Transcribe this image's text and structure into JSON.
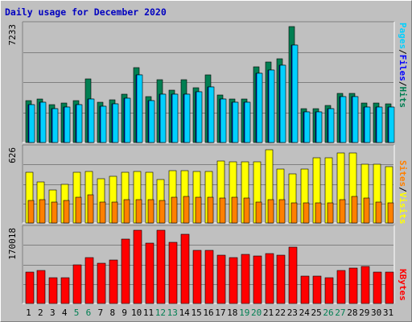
{
  "title": "Daily usage for December 2020",
  "colors": {
    "hits": "#007f52",
    "files": "#0000ff",
    "pages": "#00d0ff",
    "visits": "#ffff00",
    "sites": "#ff8000",
    "kbytes": "#ff0000",
    "weekend_label": "#007f52",
    "weekday_label": "#000000",
    "title": "#0000c0"
  },
  "legend_top": [
    "Pages",
    "/",
    "Files",
    "/",
    "Hits"
  ],
  "legend_mid": [
    "Sites",
    "/",
    "Visits"
  ],
  "legend_bot": [
    "KBytes"
  ],
  "chart_data": [
    {
      "type": "bar",
      "title": "Daily usage for December 2020",
      "categories": [
        "1",
        "2",
        "3",
        "4",
        "5",
        "6",
        "7",
        "8",
        "9",
        "10",
        "11",
        "12",
        "13",
        "14",
        "15",
        "16",
        "17",
        "18",
        "19",
        "20",
        "21",
        "22",
        "23",
        "24",
        "25",
        "26",
        "27",
        "28",
        "29",
        "30",
        "31"
      ],
      "weekend_days": [
        "5",
        "6",
        "12",
        "13",
        "19",
        "20",
        "26",
        "27"
      ],
      "ymax_label": "7233",
      "ylim": [
        0,
        7233
      ],
      "series": [
        {
          "name": "Hits",
          "values": [
            2600,
            2720,
            2340,
            2460,
            2600,
            3950,
            2510,
            2640,
            2990,
            4650,
            2840,
            3900,
            3240,
            3940,
            3410,
            4200,
            2950,
            2720,
            2720,
            4720,
            5030,
            5200,
            7233,
            2130,
            2130,
            2320,
            3080,
            3080,
            2460,
            2460,
            2420
          ]
        },
        {
          "name": "Files",
          "values": [
            2370,
            2490,
            2110,
            2230,
            2370,
            2710,
            2280,
            2410,
            2760,
            4230,
            2610,
            3010,
            3010,
            3010,
            3170,
            3460,
            2720,
            2490,
            2490,
            4340,
            4500,
            4800,
            6100,
            1900,
            1900,
            2090,
            2850,
            2850,
            2230,
            2230,
            2190
          ]
        },
        {
          "name": "Pages",
          "values": [
            2370,
            2490,
            2110,
            2230,
            2370,
            2710,
            2280,
            2410,
            2760,
            4230,
            2610,
            3010,
            3010,
            3010,
            3170,
            3460,
            2720,
            2490,
            2490,
            4340,
            4500,
            4800,
            6100,
            1900,
            1900,
            2090,
            2850,
            2850,
            2230,
            2230,
            2190
          ]
        }
      ]
    },
    {
      "type": "bar",
      "categories": [
        "1",
        "2",
        "3",
        "4",
        "5",
        "6",
        "7",
        "8",
        "9",
        "10",
        "11",
        "12",
        "13",
        "14",
        "15",
        "16",
        "17",
        "18",
        "19",
        "20",
        "21",
        "22",
        "23",
        "24",
        "25",
        "26",
        "27",
        "28",
        "29",
        "30",
        "31"
      ],
      "ymax_label": "626",
      "ylim": [
        0,
        626
      ],
      "series": [
        {
          "name": "Visits",
          "values": [
            430,
            350,
            280,
            330,
            430,
            440,
            380,
            400,
            430,
            440,
            430,
            370,
            450,
            450,
            440,
            440,
            530,
            520,
            520,
            520,
            626,
            460,
            420,
            460,
            560,
            560,
            600,
            600,
            500,
            500,
            480
          ]
        },
        {
          "name": "Sites",
          "values": [
            190,
            200,
            180,
            190,
            220,
            240,
            180,
            180,
            200,
            200,
            200,
            190,
            220,
            230,
            220,
            220,
            210,
            220,
            210,
            180,
            200,
            200,
            170,
            170,
            170,
            170,
            200,
            230,
            210,
            180,
            170
          ]
        }
      ]
    },
    {
      "type": "bar",
      "categories": [
        "1",
        "2",
        "3",
        "4",
        "5",
        "6",
        "7",
        "8",
        "9",
        "10",
        "11",
        "12",
        "13",
        "14",
        "15",
        "16",
        "17",
        "18",
        "19",
        "20",
        "21",
        "22",
        "23",
        "24",
        "25",
        "26",
        "27",
        "28",
        "29",
        "30",
        "31"
      ],
      "ymax_label": "170018",
      "ylim": [
        0,
        170018
      ],
      "series": [
        {
          "name": "KBytes",
          "values": [
            73000,
            76000,
            60000,
            60000,
            89000,
            107000,
            93000,
            101000,
            149000,
            170018,
            140000,
            170018,
            142000,
            160000,
            124000,
            123000,
            112000,
            107000,
            114000,
            110000,
            116000,
            112000,
            130000,
            63000,
            64000,
            60000,
            77000,
            82000,
            86000,
            72000,
            72000
          ]
        }
      ]
    }
  ]
}
